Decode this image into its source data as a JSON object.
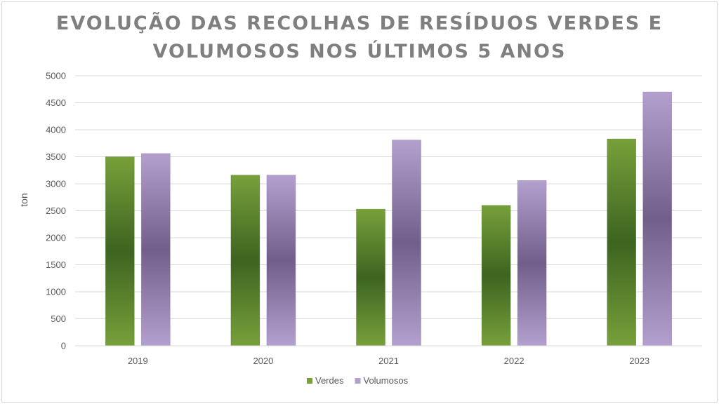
{
  "chart_data": {
    "type": "bar",
    "title": "EVOLUÇÃO DAS RECOLHAS DE RESÍDUOS VERDES E VOLUMOSOS NOS ÚLTIMOS 5 ANOS",
    "xlabel": "",
    "ylabel": "ton",
    "categories": [
      "2019",
      "2020",
      "2021",
      "2022",
      "2023"
    ],
    "ylim": [
      0,
      5000
    ],
    "yticks": [
      0,
      500,
      1000,
      1500,
      2000,
      2500,
      3000,
      3500,
      4000,
      4500,
      5000
    ],
    "grid": true,
    "legend_position": "bottom",
    "series": [
      {
        "name": "Verdes",
        "values": [
          3500,
          3160,
          2530,
          2600,
          3830
        ],
        "color": "#77a03a",
        "dark": "#3d6420"
      },
      {
        "name": "Volumosos",
        "values": [
          3560,
          3160,
          3810,
          3060,
          4700
        ],
        "color": "#b3a0cf",
        "dark": "#725e8a"
      }
    ]
  }
}
